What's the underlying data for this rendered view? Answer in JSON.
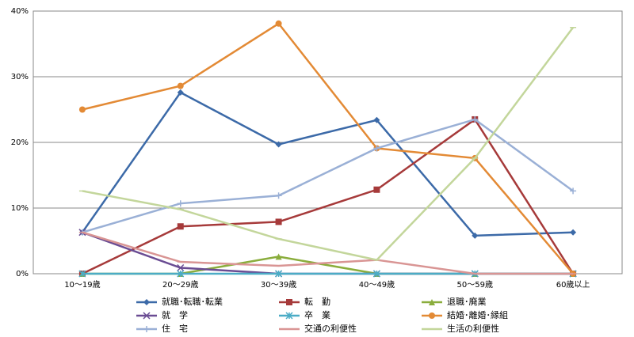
{
  "chart_data": {
    "type": "line",
    "categories": [
      "10～19歳",
      "20～29歳",
      "30～39歳",
      "40～49歳",
      "50～59歳",
      "60歳以上"
    ],
    "ylim": [
      0,
      40
    ],
    "yticks": [
      {
        "value": 0,
        "label": "0%"
      },
      {
        "value": 10,
        "label": "10%"
      },
      {
        "value": 20,
        "label": "20%"
      },
      {
        "value": 30,
        "label": "30%"
      },
      {
        "value": 40,
        "label": "40%"
      }
    ],
    "grid": true,
    "series": [
      {
        "name": "就職･転職･転業",
        "color": "#3c6aa8",
        "marker": "diamond",
        "values": [
          6.3,
          27.6,
          19.7,
          23.4,
          5.8,
          6.3
        ]
      },
      {
        "name": "転　勤",
        "color": "#a63a3a",
        "marker": "square",
        "values": [
          0,
          7.2,
          7.9,
          12.8,
          23.5,
          0
        ]
      },
      {
        "name": "退職･廃業",
        "color": "#8aad3c",
        "marker": "triangle",
        "values": [
          0,
          0,
          2.6,
          0,
          0,
          0
        ]
      },
      {
        "name": "就　学",
        "color": "#6a4c93",
        "marker": "x",
        "values": [
          6.3,
          0.9,
          0,
          0,
          0,
          0
        ]
      },
      {
        "name": "卒　業",
        "color": "#4bacc6",
        "marker": "star",
        "values": [
          0,
          0,
          0,
          0,
          0,
          0
        ]
      },
      {
        "name": "結婚･離婚･縁組",
        "color": "#e38a35",
        "marker": "circle",
        "values": [
          25,
          28.6,
          38.1,
          19.1,
          17.6,
          0
        ]
      },
      {
        "name": "住　宅",
        "color": "#9ab0d6",
        "marker": "plus",
        "values": [
          6.3,
          10.7,
          11.9,
          19.1,
          23.5,
          12.6
        ]
      },
      {
        "name": "交通の利便性",
        "color": "#d99594",
        "marker": "dash",
        "values": [
          6.3,
          1.8,
          1.2,
          2.1,
          0,
          0
        ]
      },
      {
        "name": "生活の利便性",
        "color": "#c3d69b",
        "marker": "dash",
        "values": [
          12.6,
          9.8,
          5.3,
          2.1,
          17.6,
          37.5
        ]
      }
    ]
  }
}
